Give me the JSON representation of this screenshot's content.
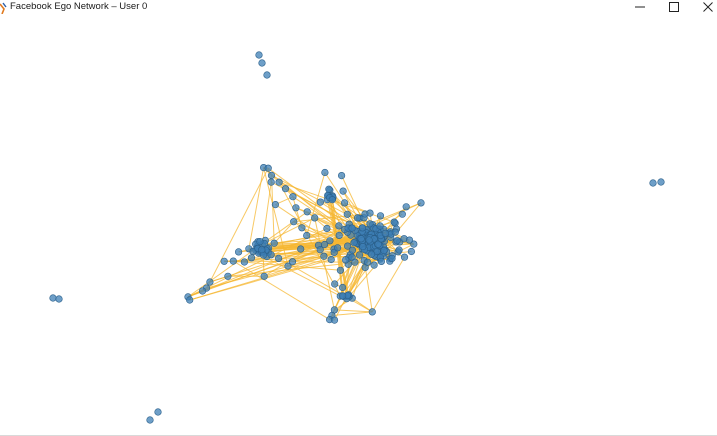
{
  "window": {
    "title": "Facebook Ego Network – User 0",
    "app_icon": "matplotlib-figure-icon",
    "controls": [
      "minimize-icon",
      "maximize-icon",
      "close-icon"
    ]
  },
  "graph": {
    "node_color": "#3d7fb5",
    "node_edge_color": "#2a5f8a",
    "edge_color": "#f5b731"
  }
}
